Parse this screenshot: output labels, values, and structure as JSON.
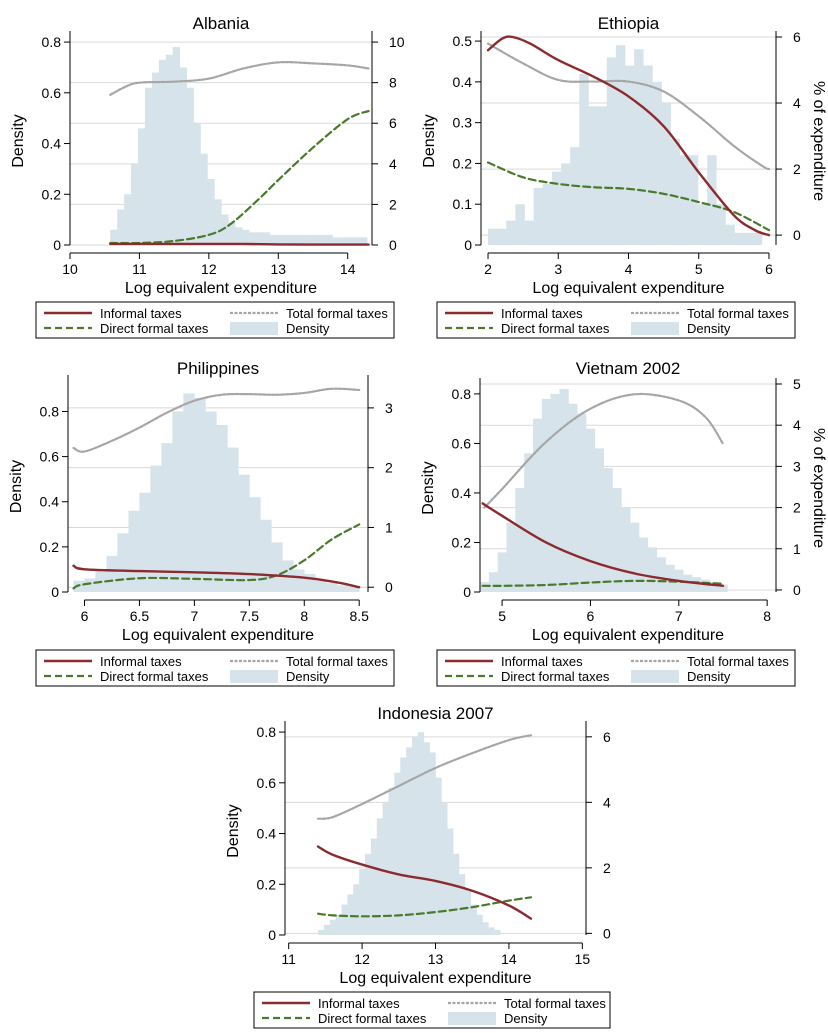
{
  "legend": {
    "informal": "Informal taxes",
    "total": "Total formal taxes",
    "direct": "Direct formal taxes",
    "density": "Density"
  },
  "colors": {
    "informal": "#8b2b2f",
    "total": "#a6a6a6",
    "direct": "#4a7a2c",
    "density": "#d7e3ea",
    "axis": "#000000",
    "grid": "#d9d9d9"
  },
  "chart_data": [
    {
      "type": "bar",
      "title": "Albania",
      "xlabel": "Log equivalent expenditure",
      "ylabel": "Density",
      "y2label": "",
      "xlim": [
        10,
        14.35
      ],
      "xticks": [
        "10",
        "11",
        "12",
        "13",
        "14"
      ],
      "ylim": [
        0,
        0.82
      ],
      "yticks": [
        "0",
        "0.2",
        "0.4",
        "0.6",
        "0.8"
      ],
      "y2lim": [
        0,
        10.25
      ],
      "y2ticks": [
        "0",
        "2",
        "4",
        "6",
        "8",
        "10"
      ],
      "grid": true,
      "legend_position": "bottom",
      "density_bins": {
        "start": 10.58,
        "width": 0.1,
        "values": [
          0.06,
          0.14,
          0.2,
          0.32,
          0.46,
          0.62,
          0.68,
          0.73,
          0.75,
          0.78,
          0.7,
          0.62,
          0.48,
          0.36,
          0.26,
          0.18,
          0.12,
          0.09,
          0.07,
          0.06,
          0.05,
          0.05,
          0.05,
          0.04,
          0.04,
          0.04,
          0.04,
          0.04,
          0.04,
          0.04,
          0.04,
          0.04,
          0.03,
          0.03,
          0.03,
          0.03,
          0.03
        ]
      },
      "series": [
        {
          "name": "Informal taxes",
          "x": [
            10.58,
            11,
            11.5,
            12,
            12.5,
            13,
            13.5,
            14,
            14.3
          ],
          "values": [
            0.05,
            0.05,
            0.05,
            0.05,
            0.05,
            0.03,
            0.02,
            0.02,
            0.02
          ]
        },
        {
          "name": "Total formal taxes",
          "x": [
            10.58,
            10.8,
            11,
            11.5,
            12,
            12.5,
            13,
            13.5,
            14,
            14.3
          ],
          "values": [
            7.4,
            7.8,
            8.0,
            8.05,
            8.2,
            8.7,
            9.0,
            8.95,
            8.85,
            8.7
          ]
        },
        {
          "name": "Direct formal taxes",
          "x": [
            10.58,
            11,
            11.5,
            12,
            12.3,
            12.7,
            13,
            13.5,
            14,
            14.3
          ],
          "values": [
            0.1,
            0.1,
            0.2,
            0.5,
            1.0,
            2.2,
            3.2,
            4.8,
            6.2,
            6.6
          ]
        }
      ]
    },
    {
      "type": "bar",
      "title": "Ethiopia",
      "xlabel": "Log equivalent expenditure",
      "ylabel": "Density",
      "y2label": "% of expenditure",
      "xlim": [
        1.9,
        6.1
      ],
      "xticks": [
        "2",
        "3",
        "4",
        "5",
        "6"
      ],
      "ylim": [
        0,
        0.51
      ],
      "yticks": [
        "0",
        "0.1",
        "0.2",
        "0.3",
        "0.4",
        "0.5"
      ],
      "y2lim": [
        -0.3,
        6.0
      ],
      "y2ticks": [
        "0",
        "2",
        "4",
        "6"
      ],
      "grid": true,
      "legend_position": "bottom",
      "density_bins": {
        "start": 2.0,
        "width": 0.13,
        "values": [
          0.04,
          0.04,
          0.06,
          0.1,
          0.06,
          0.14,
          0.15,
          0.18,
          0.2,
          0.24,
          0.42,
          0.34,
          0.34,
          0.46,
          0.49,
          0.44,
          0.48,
          0.44,
          0.4,
          0.35,
          0.26,
          0.22,
          0.22,
          0.1,
          0.22,
          0.1,
          0.05,
          0.03,
          0.03,
          0.03
        ]
      },
      "series": [
        {
          "name": "Informal taxes",
          "x": [
            2.0,
            2.2,
            2.35,
            2.6,
            3.0,
            3.5,
            4.0,
            4.5,
            5.0,
            5.5,
            5.8,
            6.0
          ],
          "values": [
            5.6,
            5.95,
            6.0,
            5.8,
            5.3,
            4.8,
            4.2,
            3.3,
            1.9,
            0.6,
            0.15,
            0.0
          ]
        },
        {
          "name": "Total formal taxes",
          "x": [
            2.0,
            2.5,
            3.0,
            3.5,
            4.0,
            4.5,
            5.0,
            5.5,
            5.9,
            6.0
          ],
          "values": [
            5.8,
            5.2,
            4.7,
            4.65,
            4.65,
            4.35,
            3.6,
            2.7,
            2.1,
            2.0
          ]
        },
        {
          "name": "Direct formal taxes",
          "x": [
            2.0,
            2.5,
            3.0,
            3.5,
            4.0,
            4.5,
            5.0,
            5.5,
            6.0
          ],
          "values": [
            2.2,
            1.75,
            1.55,
            1.45,
            1.4,
            1.25,
            1.0,
            0.7,
            0.15
          ]
        }
      ]
    },
    {
      "type": "bar",
      "title": "Philippines",
      "xlabel": "Log equivalent expenditure",
      "ylabel": "Density",
      "y2label": "",
      "xlim": [
        5.85,
        8.58
      ],
      "xticks": [
        "6",
        "6.5",
        "7",
        "7.5",
        "8",
        "8.5"
      ],
      "ylim": [
        0,
        0.935
      ],
      "yticks": [
        "0",
        "0.2",
        "0.4",
        "0.6",
        "0.8"
      ],
      "y2lim": [
        -0.08,
        3.45
      ],
      "y2ticks": [
        "0",
        "1",
        "2",
        "3"
      ],
      "grid": true,
      "legend_position": "bottom",
      "density_bins": {
        "start": 5.9,
        "width": 0.1,
        "values": [
          0.05,
          0.06,
          0.1,
          0.16,
          0.26,
          0.36,
          0.44,
          0.56,
          0.66,
          0.8,
          0.88,
          0.86,
          0.8,
          0.74,
          0.64,
          0.52,
          0.42,
          0.32,
          0.22,
          0.14,
          0.1,
          0.08,
          0.05,
          0.04,
          0.03,
          0.02
        ]
      },
      "series": [
        {
          "name": "Informal taxes",
          "x": [
            5.9,
            6.0,
            6.5,
            7.0,
            7.5,
            8.0,
            8.3,
            8.5
          ],
          "values": [
            0.36,
            0.3,
            0.27,
            0.25,
            0.22,
            0.16,
            0.08,
            0.0
          ]
        },
        {
          "name": "Total formal taxes",
          "x": [
            5.9,
            6.0,
            6.25,
            6.5,
            6.75,
            7.0,
            7.25,
            7.5,
            7.75,
            8.0,
            8.25,
            8.5
          ],
          "values": [
            2.33,
            2.27,
            2.45,
            2.67,
            2.92,
            3.12,
            3.22,
            3.23,
            3.22,
            3.25,
            3.32,
            3.3
          ]
        },
        {
          "name": "Direct formal taxes",
          "x": [
            5.9,
            6.0,
            6.5,
            7.0,
            7.5,
            7.75,
            8.0,
            8.25,
            8.5
          ],
          "values": [
            -0.02,
            0.05,
            0.15,
            0.14,
            0.12,
            0.2,
            0.45,
            0.8,
            1.05
          ]
        }
      ]
    },
    {
      "type": "bar",
      "title": "Vietnam 2002",
      "xlabel": "Log equivalent expenditure",
      "ylabel": "Density",
      "y2label": "% of expenditure",
      "xlim": [
        4.75,
        8.1
      ],
      "xticks": [
        "5",
        "6",
        "7",
        "8"
      ],
      "ylim": [
        0,
        0.84
      ],
      "yticks": [
        "0",
        "0.2",
        "0.4",
        "0.6",
        "0.8"
      ],
      "y2lim": [
        -0.05,
        5.0
      ],
      "y2ticks": [
        "0",
        "1",
        "2",
        "3",
        "4",
        "5"
      ],
      "grid": true,
      "legend_position": "bottom",
      "density_bins": {
        "start": 4.75,
        "width": 0.1,
        "values": [
          0.04,
          0.08,
          0.16,
          0.28,
          0.42,
          0.56,
          0.7,
          0.78,
          0.8,
          0.82,
          0.76,
          0.72,
          0.66,
          0.58,
          0.5,
          0.42,
          0.34,
          0.28,
          0.22,
          0.18,
          0.14,
          0.11,
          0.09,
          0.07,
          0.06,
          0.05,
          0.04,
          0.03
        ]
      },
      "series": [
        {
          "name": "Informal taxes",
          "x": [
            4.78,
            5.0,
            5.5,
            6.0,
            6.5,
            7.0,
            7.5
          ],
          "values": [
            2.1,
            1.8,
            1.15,
            0.7,
            0.4,
            0.22,
            0.1
          ]
        },
        {
          "name": "Total formal taxes",
          "x": [
            4.8,
            5.0,
            5.5,
            6.0,
            6.5,
            7.0,
            7.3,
            7.5
          ],
          "values": [
            2.0,
            2.45,
            3.6,
            4.4,
            4.75,
            4.6,
            4.2,
            3.55
          ]
        },
        {
          "name": "Direct formal taxes",
          "x": [
            4.78,
            5.0,
            5.5,
            6.0,
            6.5,
            7.0,
            7.5
          ],
          "values": [
            0.1,
            0.1,
            0.12,
            0.18,
            0.22,
            0.2,
            0.15
          ]
        }
      ]
    },
    {
      "type": "bar",
      "title": "Indonesia 2007",
      "xlabel": "Log equivalent expenditure",
      "ylabel": "Density",
      "y2label": "",
      "xlim": [
        10.95,
        15.05
      ],
      "xticks": [
        "11",
        "12",
        "13",
        "14",
        "15"
      ],
      "ylim": [
        0,
        0.82
      ],
      "yticks": [
        "0",
        "0.2",
        "0.4",
        "0.6",
        "0.8"
      ],
      "y2lim": [
        -0.05,
        6.3
      ],
      "y2ticks": [
        "0",
        "2",
        "4",
        "6"
      ],
      "grid": true,
      "legend_position": "bottom",
      "density_bins": {
        "start": 11.4,
        "width": 0.08,
        "values": [
          0.02,
          0.04,
          0.06,
          0.08,
          0.12,
          0.16,
          0.2,
          0.26,
          0.32,
          0.38,
          0.46,
          0.52,
          0.58,
          0.64,
          0.7,
          0.74,
          0.78,
          0.8,
          0.76,
          0.72,
          0.62,
          0.52,
          0.42,
          0.32,
          0.24,
          0.18,
          0.12,
          0.08,
          0.05,
          0.03,
          0.02
        ]
      },
      "series": [
        {
          "name": "Informal taxes",
          "x": [
            11.4,
            11.6,
            12.0,
            12.5,
            13.0,
            13.5,
            14.0,
            14.3
          ],
          "values": [
            2.65,
            2.4,
            2.1,
            1.8,
            1.6,
            1.3,
            0.85,
            0.45
          ]
        },
        {
          "name": "Total formal taxes",
          "x": [
            11.4,
            11.6,
            12.0,
            12.5,
            13.0,
            13.5,
            14.0,
            14.3
          ],
          "values": [
            3.5,
            3.55,
            3.95,
            4.5,
            5.05,
            5.5,
            5.9,
            6.05
          ]
        },
        {
          "name": "Direct formal taxes",
          "x": [
            11.4,
            11.6,
            12.0,
            12.5,
            13.0,
            13.5,
            14.0,
            14.3
          ],
          "values": [
            0.6,
            0.55,
            0.52,
            0.55,
            0.65,
            0.8,
            1.0,
            1.1
          ]
        }
      ]
    }
  ]
}
